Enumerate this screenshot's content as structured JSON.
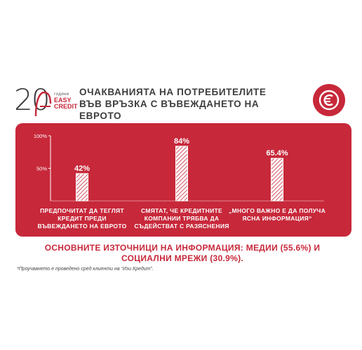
{
  "logo": {
    "number": "20",
    "years": "години",
    "brand_line1": "EASY",
    "brand_line2": "CREDIT"
  },
  "title": "ОЧАКВАНИЯТА НА ПОТРЕБИТЕЛИТЕ ВЪВ ВРЪЗКА С ВЪВЕЖДАНЕТО НА ЕВРОТО",
  "euro_icon": "euro-icon",
  "colors": {
    "accent": "#c7283a",
    "text": "#3d3d3d",
    "white": "#ffffff"
  },
  "chart_data": {
    "type": "bar",
    "categories": [
      "ПРЕДПОЧИТАТ ДА ТЕГЛЯТ КРЕДИТ ПРЕДИ ВЪВЕЖДАНЕТО НА ЕВРОТО",
      "СМЯТАТ, ЧЕ КРЕДИТНИТЕ КОМПАНИИ ТРЯБВА ДА СЪДЕЙСТВАТ С РАЗЯСНЕНИЯ",
      "„МНОГО ВАЖНО Е ДА ПОЛУЧА ЯСНА ИНФОРМАЦИЯ“"
    ],
    "values": [
      42,
      84,
      65.4
    ],
    "value_labels": [
      "42%",
      "84%",
      "65.4%"
    ],
    "yticks": [
      "100%",
      "50%"
    ],
    "ylim": [
      0,
      100
    ],
    "grid": false
  },
  "sources_line": "ОСНОВНИТЕ ИЗТОЧНИЦИ НА ИНФОРМАЦИЯ: МЕДИИ (55.6%) И СОЦИАЛНИ МРЕЖИ (30.9%).",
  "footnote": "*Проучването е проведено сред клиенти на “Изи Кредит”."
}
